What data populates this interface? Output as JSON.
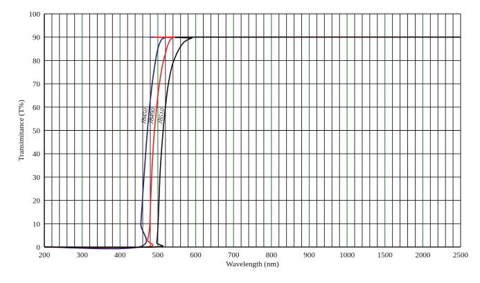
{
  "colors": {
    "background": "#ffffff",
    "grid_major": "#1a1a1a",
    "grid_accent": "#2e8b3a",
    "curve_jb450": "#2a1f6e",
    "curve_jb490": "#ff1a1a",
    "curve_jb510": "#111111"
  },
  "chart_data": {
    "type": "line",
    "title": "",
    "xlabel": "Wavelength (nm)",
    "ylabel": "Transimitance (T%)",
    "x_tick_labels": [
      "200",
      "300",
      "400",
      "500",
      "600",
      "700",
      "800",
      "900",
      "1000",
      "1500",
      "2000",
      "2500"
    ],
    "y_tick_labels": [
      "0",
      "10",
      "20",
      "30",
      "40",
      "50",
      "60",
      "70",
      "80",
      "90",
      "100"
    ],
    "ylim": [
      0,
      100
    ],
    "grid": true,
    "series": [
      {
        "name": "JB450",
        "color": "#2a1f6e",
        "x": [
          200,
          450,
          455,
          460,
          465,
          470,
          475,
          480,
          485,
          490,
          495,
          500,
          505,
          510,
          515,
          520,
          525,
          530,
          540,
          2500
        ],
        "y": [
          0,
          0,
          10,
          22,
          34,
          45,
          55,
          63,
          70,
          76,
          81,
          85,
          87.5,
          89,
          89.5,
          89.8,
          90,
          90,
          90,
          90
        ]
      },
      {
        "name": "JB490",
        "color": "#ff1a1a",
        "x": [
          200,
          465,
          473,
          478,
          480,
          483,
          486,
          490,
          495,
          500,
          505,
          510,
          515,
          520,
          525,
          530,
          535,
          540,
          550,
          2500
        ],
        "y": [
          0,
          0,
          3,
          8,
          15,
          28,
          38,
          48,
          57,
          65,
          71,
          76,
          80,
          83,
          86,
          88,
          89.3,
          89.8,
          90,
          90
        ]
      },
      {
        "name": "JB510",
        "color": "#111111",
        "x": [
          200,
          490,
          497,
          500,
          503,
          506,
          510,
          515,
          520,
          525,
          530,
          535,
          540,
          550,
          560,
          570,
          580,
          590,
          600,
          2500
        ],
        "y": [
          0,
          0,
          2,
          8,
          20,
          32,
          42,
          52,
          60,
          67,
          72,
          76,
          79,
          83,
          86,
          88,
          89,
          89.6,
          90,
          90
        ]
      }
    ]
  }
}
